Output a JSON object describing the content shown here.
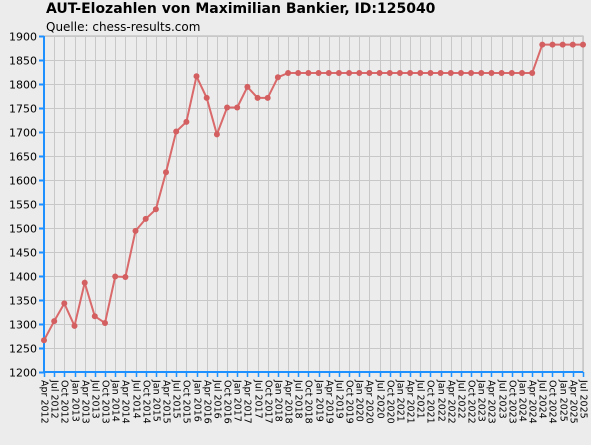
{
  "chart_data": {
    "type": "line",
    "title": "AUT-Elozahlen von Maximilian Bankier, ID:125040",
    "subtitle": "Quelle: chess-results.com",
    "xlabel": "",
    "ylabel": "",
    "ylim": [
      1200,
      1900
    ],
    "yticks": [
      1200,
      1250,
      1300,
      1350,
      1400,
      1450,
      1500,
      1550,
      1600,
      1650,
      1700,
      1750,
      1800,
      1850,
      1900
    ],
    "grid": true,
    "legend": "none",
    "colors": {
      "line": "#d9696a",
      "marker": "#d35f60",
      "axis": "#1e90ff",
      "grid": "#c8c8c8",
      "plot_bg": "#ececec"
    },
    "categories": [
      "Apr 2012",
      "Jul 2012",
      "Oct 2012",
      "Jan 2013",
      "Apr 2013",
      "Jul 2013",
      "Oct 2013",
      "Jan 2014",
      "Apr 2014",
      "Jul 2014",
      "Oct 2014",
      "Jan 2015",
      "Apr 2015",
      "Jul 2015",
      "Oct 2015",
      "Jan 2016",
      "Apr 2016",
      "Jul 2016",
      "Oct 2016",
      "Jan 2017",
      "Apr 2017",
      "Jul 2017",
      "Oct 2017",
      "Jan 2018",
      "Apr 2018",
      "Jul 2018",
      "Oct 2018",
      "Jan 2019",
      "Apr 2019",
      "Jul 2019",
      "Oct 2019",
      "Jan 2020",
      "Apr 2020",
      "Jul 2020",
      "Oct 2020",
      "Jan 2021",
      "Apr 2021",
      "Jul 2021",
      "Oct 2021",
      "Jan 2022",
      "Apr 2022",
      "Jul 2022",
      "Oct 2022",
      "Jan 2023",
      "Apr 2023",
      "Jul 2023",
      "Oct 2023",
      "Jan 2024",
      "Apr 2024",
      "Jul 2024",
      "Oct 2024",
      "Jan 2025",
      "Apr 2025",
      "Jul 2025"
    ],
    "series": [
      {
        "values": [
          1266,
          1306,
          1343,
          1296,
          1386,
          1316,
          1302,
          1399,
          1398,
          1494,
          1519,
          1539,
          1616,
          1701,
          1721,
          1816,
          1771,
          1695,
          1751,
          1751,
          1794,
          1771,
          1771,
          1814,
          1823,
          1823,
          1823,
          1823,
          1823,
          1823,
          1823,
          1823,
          1823,
          1823,
          1823,
          1823,
          1823,
          1823,
          1823,
          1823,
          1823,
          1823,
          1823,
          1823,
          1823,
          1823,
          1823,
          1823,
          1823,
          1882,
          1882,
          1882,
          1882,
          1882
        ]
      }
    ]
  }
}
